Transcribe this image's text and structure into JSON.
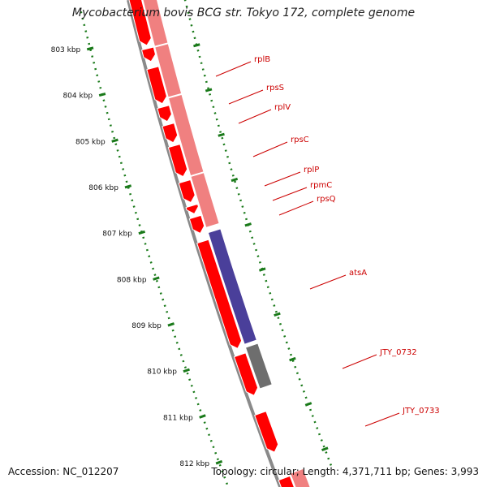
{
  "header": {
    "title": "Mycobacterium bovis BCG str. Tokyo 172, complete genome"
  },
  "footer": {
    "accession": "Accession: NC_012207",
    "summary": "Topology: circular; Length: 4,371,711 bp; Genes: 3,993"
  },
  "scale": {
    "ticks": [
      {
        "label": "803 kbp"
      },
      {
        "label": "804 kbp"
      },
      {
        "label": "805 kbp"
      },
      {
        "label": "806 kbp"
      },
      {
        "label": "807 kbp"
      },
      {
        "label": "808 kbp"
      },
      {
        "label": "809 kbp"
      },
      {
        "label": "810 kbp"
      },
      {
        "label": "811 kbp"
      },
      {
        "label": "812 kbp"
      }
    ],
    "color": "#1a7a1a"
  },
  "genes": [
    {
      "label": "rplB"
    },
    {
      "label": "rpsS"
    },
    {
      "label": "rplV"
    },
    {
      "label": "rpsC"
    },
    {
      "label": "rplP"
    },
    {
      "label": "rpmC"
    },
    {
      "label": "rpsQ"
    },
    {
      "label": "atsA"
    },
    {
      "label": "JTY_0732"
    },
    {
      "label": "JTY_0733"
    }
  ],
  "colors": {
    "cds": "#ff0000",
    "operon": "#f08080",
    "atsA": "#4a3f9a",
    "pseudo": "#6e6e6e",
    "backbone": "#8a8a8a",
    "label": "#cc0000"
  }
}
